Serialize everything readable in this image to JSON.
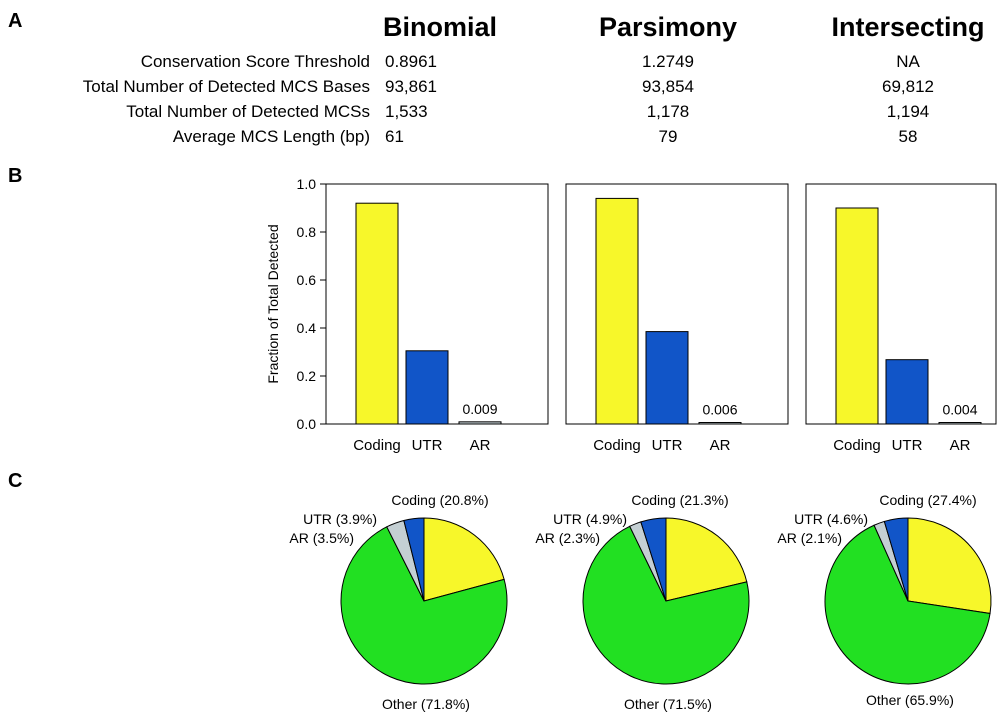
{
  "panels": {
    "a": "A",
    "b": "B",
    "c": "C"
  },
  "table": {
    "columns": [
      "Binomial",
      "Parsimony",
      "Intersecting"
    ],
    "rows": [
      {
        "label": "Conservation Score Threshold",
        "values": [
          "0.8961",
          "1.2749",
          "NA"
        ]
      },
      {
        "label": "Total Number of Detected MCS Bases",
        "values": [
          "93,861",
          "93,854",
          "69,812"
        ]
      },
      {
        "label": "Total Number of Detected MCSs",
        "values": [
          "1,533",
          "1,178",
          "1,194"
        ]
      },
      {
        "label": "Average MCS Length (bp)",
        "values": [
          "61",
          "79",
          "58"
        ]
      }
    ]
  },
  "colors": {
    "coding": "#f7f72a",
    "utr": "#1155c8",
    "ar": "#c4cfd3",
    "other": "#22e022"
  },
  "chart_data": [
    {
      "type": "bar",
      "ylabel": "Fraction of Total Detected",
      "ylim": [
        0,
        1.0
      ],
      "yticks": [
        "0.0",
        "0.2",
        "0.4",
        "0.6",
        "0.8",
        "1.0"
      ],
      "groups": [
        {
          "name": "Binomial",
          "categories": [
            "Coding",
            "UTR",
            "AR"
          ],
          "values": [
            0.92,
            0.305,
            0.009
          ],
          "labels": [
            "",
            "",
            "0.009"
          ]
        },
        {
          "name": "Parsimony",
          "categories": [
            "Coding",
            "UTR",
            "AR"
          ],
          "values": [
            0.94,
            0.385,
            0.006
          ],
          "labels": [
            "",
            "",
            "0.006"
          ]
        },
        {
          "name": "Intersecting",
          "categories": [
            "Coding",
            "UTR",
            "AR"
          ],
          "values": [
            0.9,
            0.268,
            0.004
          ],
          "labels": [
            "",
            "",
            "0.004"
          ]
        }
      ]
    },
    {
      "type": "pie",
      "pies": [
        {
          "name": "Binomial",
          "slices": [
            {
              "key": "coding",
              "value": 20.8,
              "label": "Coding (20.8%)"
            },
            {
              "key": "other",
              "value": 71.8,
              "label": "Other (71.8%)"
            },
            {
              "key": "ar",
              "value": 3.5,
              "label": "AR (3.5%)"
            },
            {
              "key": "utr",
              "value": 3.9,
              "label": "UTR (3.9%)"
            }
          ]
        },
        {
          "name": "Parsimony",
          "slices": [
            {
              "key": "coding",
              "value": 21.3,
              "label": "Coding (21.3%)"
            },
            {
              "key": "other",
              "value": 71.5,
              "label": "Other (71.5%)"
            },
            {
              "key": "ar",
              "value": 2.3,
              "label": "AR (2.3%)"
            },
            {
              "key": "utr",
              "value": 4.9,
              "label": "UTR (4.9%)"
            }
          ]
        },
        {
          "name": "Intersecting",
          "slices": [
            {
              "key": "coding",
              "value": 27.4,
              "label": "Coding (27.4%)"
            },
            {
              "key": "other",
              "value": 65.9,
              "label": "Other (65.9%)"
            },
            {
              "key": "ar",
              "value": 2.1,
              "label": "AR (2.1%)"
            },
            {
              "key": "utr",
              "value": 4.6,
              "label": "UTR (4.6%)"
            }
          ]
        }
      ]
    }
  ]
}
